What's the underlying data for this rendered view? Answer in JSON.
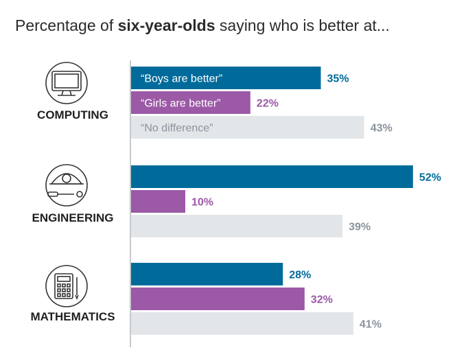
{
  "title": {
    "prefix": "Percentage of ",
    "emphasis": "six-year-olds",
    "suffix": " saying who is better at..."
  },
  "chart_data": {
    "type": "bar",
    "orientation": "horizontal",
    "categories": [
      "COMPUTING",
      "ENGINEERING",
      "MATHEMATICS"
    ],
    "series": [
      {
        "name": "“Boys are better”",
        "values": [
          35,
          52,
          28
        ],
        "color": "#006b9a",
        "label_color": "#006b9a"
      },
      {
        "name": "“Girls are better”",
        "values": [
          22,
          10,
          32
        ],
        "color": "#9b59a6",
        "label_color": "#9b59a6"
      },
      {
        "name": "“No difference”",
        "values": [
          43,
          39,
          41
        ],
        "color": "#e3e6e9",
        "label_color": "#8a939b"
      }
    ],
    "value_suffix": "%",
    "icons": [
      "computer-icon",
      "engineering-icon",
      "calculator-icon"
    ],
    "legend": "inline labels in first group's bars",
    "grid": false
  }
}
